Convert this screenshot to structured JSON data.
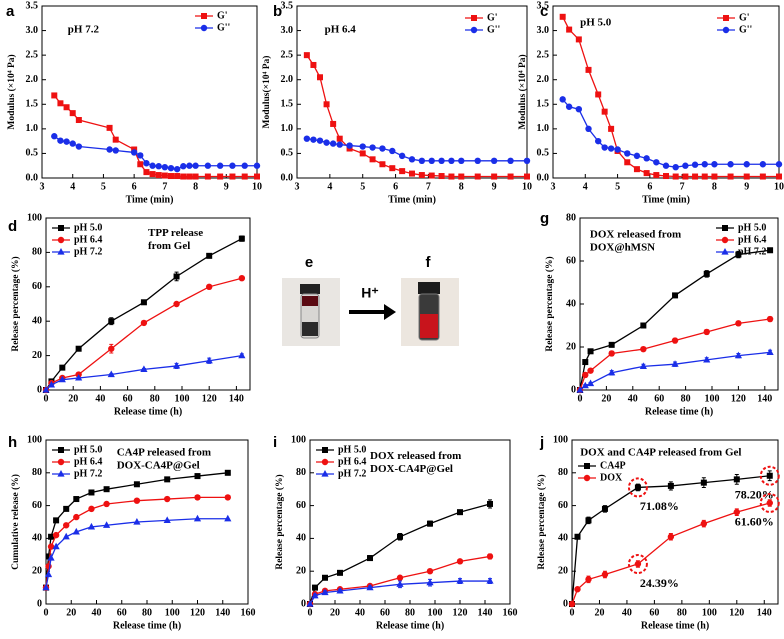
{
  "chart_data": [
    {
      "type": "line",
      "panel_label": "a",
      "annotation": [
        "pH 7.2"
      ],
      "x_label": "Time (min)",
      "y_label": "Modulus (×10⁴ Pa)",
      "xlim": [
        3,
        10
      ],
      "xticks": [
        3,
        4,
        5,
        6,
        7,
        8,
        9,
        10
      ],
      "ylim": [
        0,
        3.5
      ],
      "yticks": [
        {
          "value": 0,
          "label": "0.0"
        },
        0.5,
        {
          "value": 1,
          "label": "1.0"
        },
        1.5,
        {
          "value": 2,
          "label": "2.0"
        },
        2.5,
        {
          "value": 3,
          "label": "3.0"
        },
        3.5
      ],
      "legend": "upper right",
      "x": [
        3.4,
        3.6,
        3.8,
        4.0,
        4.2,
        5.2,
        5.4,
        6.0,
        6.2,
        6.4,
        6.6,
        6.8,
        7.0,
        7.2,
        7.4,
        7.6,
        7.8,
        8.0,
        8.4,
        8.8,
        9.2,
        9.6,
        10.0
      ],
      "series": [
        {
          "name": "G'",
          "color": "#ee1111",
          "marker": "square",
          "values": [
            1.68,
            1.52,
            1.44,
            1.32,
            1.18,
            1.02,
            0.78,
            0.58,
            0.28,
            0.12,
            0.08,
            0.06,
            0.05,
            0.04,
            0.04,
            0.03,
            0.03,
            0.03,
            0.03,
            0.03,
            0.03,
            0.03,
            0.03
          ]
        },
        {
          "name": "G''",
          "color": "#1a2ee8",
          "marker": "circle",
          "values": [
            0.85,
            0.76,
            0.74,
            0.7,
            0.64,
            0.58,
            0.56,
            0.52,
            0.46,
            0.3,
            0.25,
            0.24,
            0.22,
            0.2,
            0.18,
            0.24,
            0.25,
            0.25,
            0.25,
            0.25,
            0.25,
            0.25,
            0.25
          ]
        }
      ]
    },
    {
      "type": "line",
      "panel_label": "b",
      "annotation": [
        "pH 6.4"
      ],
      "x_label": "Time (min)",
      "y_label": "Modulus(×10⁴ Pa)",
      "xlim": [
        3,
        10
      ],
      "xticks": [
        3,
        4,
        5,
        6,
        7,
        8,
        9,
        10
      ],
      "ylim": [
        0,
        3.5
      ],
      "yticks": [
        {
          "value": 0,
          "label": "0.0"
        },
        0.5,
        {
          "value": 1,
          "label": "1.0"
        },
        1.5,
        {
          "value": 2,
          "label": "2.0"
        },
        2.5,
        {
          "value": 3,
          "label": "3.0"
        },
        3.5
      ],
      "legend": "upper right",
      "x": [
        3.3,
        3.5,
        3.7,
        3.9,
        4.1,
        4.3,
        4.6,
        5.0,
        5.3,
        5.6,
        5.9,
        6.2,
        6.5,
        6.8,
        7.1,
        7.4,
        7.7,
        8.0,
        8.5,
        9.0,
        9.5,
        10.0
      ],
      "series": [
        {
          "name": "G'",
          "color": "#ee1111",
          "marker": "square",
          "values": [
            2.5,
            2.3,
            2.05,
            1.5,
            1.1,
            0.8,
            0.6,
            0.5,
            0.38,
            0.28,
            0.2,
            0.14,
            0.09,
            0.06,
            0.05,
            0.04,
            0.03,
            0.03,
            0.03,
            0.03,
            0.03,
            0.03
          ]
        },
        {
          "name": "G''",
          "color": "#1a2ee8",
          "marker": "circle",
          "values": [
            0.8,
            0.78,
            0.76,
            0.72,
            0.7,
            0.68,
            0.66,
            0.64,
            0.62,
            0.6,
            0.55,
            0.45,
            0.38,
            0.35,
            0.35,
            0.35,
            0.35,
            0.35,
            0.35,
            0.35,
            0.35,
            0.35
          ]
        }
      ]
    },
    {
      "type": "line",
      "panel_label": "c",
      "annotation": [
        "pH 5.0"
      ],
      "x_label": "Time (min)",
      "y_label": "Modulus (×10⁴ Pa)",
      "xlim": [
        3,
        10
      ],
      "xticks": [
        3,
        4,
        5,
        6,
        7,
        8,
        9,
        10
      ],
      "ylim": [
        0,
        3.5
      ],
      "yticks": [
        {
          "value": 0,
          "label": "0.0"
        },
        0.5,
        {
          "value": 1,
          "label": "1.0"
        },
        1.5,
        {
          "value": 2,
          "label": "2.0"
        },
        2.5,
        {
          "value": 3,
          "label": "3.0"
        },
        3.5
      ],
      "legend": "upper right",
      "x": [
        3.3,
        3.5,
        3.8,
        4.1,
        4.4,
        4.6,
        4.8,
        5.0,
        5.3,
        5.6,
        5.9,
        6.2,
        6.5,
        6.8,
        7.1,
        7.4,
        7.7,
        8.0,
        8.5,
        9.0,
        9.5,
        10.0
      ],
      "series": [
        {
          "name": "G'",
          "color": "#ee1111",
          "marker": "square",
          "values": [
            3.28,
            3.02,
            2.82,
            2.2,
            1.7,
            1.35,
            1.0,
            0.55,
            0.32,
            0.18,
            0.1,
            0.06,
            0.04,
            0.03,
            0.03,
            0.03,
            0.03,
            0.03,
            0.03,
            0.03,
            0.03,
            0.03
          ]
        },
        {
          "name": "G''",
          "color": "#1a2ee8",
          "marker": "circle",
          "values": [
            1.6,
            1.45,
            1.4,
            1.0,
            0.75,
            0.62,
            0.6,
            0.58,
            0.5,
            0.45,
            0.4,
            0.32,
            0.25,
            0.22,
            0.25,
            0.27,
            0.28,
            0.28,
            0.28,
            0.28,
            0.28,
            0.28
          ]
        }
      ]
    },
    {
      "type": "line",
      "panel_label": "d",
      "annotation": [
        "TPP release",
        "from Gel"
      ],
      "x_label": "Release time (h)",
      "y_label": "Release percentage (%)",
      "xlim": [
        0,
        150
      ],
      "xticks": [
        0,
        20,
        40,
        60,
        80,
        100,
        120,
        140
      ],
      "ylim": [
        0,
        100
      ],
      "yticks": [
        0,
        20,
        40,
        60,
        80,
        100
      ],
      "legend": "upper left",
      "x": [
        0,
        4,
        12,
        24,
        48,
        72,
        96,
        120,
        144
      ],
      "series": [
        {
          "name": "pH  5.0",
          "color": "#000000",
          "marker": "square",
          "values": [
            0,
            5,
            13,
            24,
            40,
            51,
            66,
            78,
            88
          ],
          "errors": [
            0,
            0.5,
            1,
            1,
            2,
            1,
            2.5,
            1,
            1.5
          ]
        },
        {
          "name": "pH  6.4",
          "color": "#ee1111",
          "marker": "circle",
          "values": [
            0,
            4,
            7,
            9,
            24,
            39,
            50,
            60,
            65
          ],
          "errors": [
            0,
            0.5,
            0.5,
            0.5,
            2.5,
            1,
            1,
            1,
            1
          ]
        },
        {
          "name": "pH  7.2",
          "color": "#1a2ee8",
          "marker": "triangle",
          "values": [
            0,
            3,
            6,
            7,
            9,
            12,
            14,
            17,
            20
          ],
          "errors": [
            0,
            0.3,
            0.3,
            0.3,
            0.5,
            0.5,
            1.5,
            1.5,
            1
          ]
        }
      ]
    },
    {
      "type": "line",
      "panel_label": "g",
      "annotation": [
        "DOX released from",
        "DOX@hMSN"
      ],
      "x_label": "Release time (h)",
      "y_label": "Release percentage (%)",
      "xlim": [
        0,
        150
      ],
      "xticks": [
        0,
        20,
        40,
        60,
        80,
        100,
        120,
        140
      ],
      "ylim": [
        0,
        80
      ],
      "yticks": [
        0,
        20,
        40,
        60,
        80
      ],
      "legend": "upper right",
      "x": [
        0,
        4,
        8,
        24,
        48,
        72,
        96,
        120,
        144
      ],
      "series": [
        {
          "name": "pH  5.0",
          "color": "#000000",
          "marker": "square",
          "values": [
            0,
            13,
            18,
            21,
            30,
            44,
            54,
            63,
            65
          ],
          "errors": [
            0,
            1,
            1,
            1,
            1,
            1,
            1.5,
            1.5,
            1
          ]
        },
        {
          "name": "pH  6.4",
          "color": "#ee1111",
          "marker": "circle",
          "values": [
            0,
            7,
            9,
            17,
            19,
            23,
            27,
            31,
            33
          ],
          "errors": [
            0,
            1,
            1,
            1,
            1,
            1,
            1,
            1,
            1
          ]
        },
        {
          "name": "pH  7.2",
          "color": "#1a2ee8",
          "marker": "triangle",
          "values": [
            0,
            2,
            3,
            8,
            11,
            12,
            14,
            16,
            17.5
          ],
          "errors": [
            0,
            0.5,
            0.5,
            1,
            1,
            1,
            1,
            1,
            1
          ]
        }
      ]
    },
    {
      "type": "line",
      "panel_label": "h",
      "annotation": [
        "CA4P released from",
        "DOX-CA4P@Gel"
      ],
      "x_label": "Release time (h)",
      "y_label": "Cumulative release (%)",
      "xlim": [
        0,
        160
      ],
      "xticks": [
        0,
        20,
        40,
        60,
        80,
        100,
        120,
        140,
        160
      ],
      "ylim": [
        0,
        100
      ],
      "yticks": [
        0,
        20,
        40,
        60,
        80,
        100
      ],
      "legend": "upper left",
      "x": [
        0,
        2,
        4,
        8,
        16,
        24,
        36,
        48,
        72,
        96,
        120,
        144
      ],
      "series": [
        {
          "name": "pH  5.0",
          "color": "#000000",
          "marker": "square",
          "values": [
            10,
            29,
            41,
            51,
            58,
            64,
            68,
            70,
            73,
            76,
            78,
            80
          ]
        },
        {
          "name": "pH  6.4",
          "color": "#ee1111",
          "marker": "circle",
          "values": [
            10,
            23,
            35,
            42,
            48,
            53,
            58,
            61,
            63,
            64,
            65,
            65
          ]
        },
        {
          "name": "pH  7.2",
          "color": "#1a2ee8",
          "marker": "triangle",
          "values": [
            10,
            18,
            28,
            35,
            41,
            44,
            47,
            48,
            50,
            51,
            52,
            52
          ]
        }
      ]
    },
    {
      "type": "line",
      "panel_label": "i",
      "annotation": [
        "DOX released from",
        "DOX-CA4P@Gel"
      ],
      "x_label": "Release time (h)",
      "y_label": "Release percentage (%)",
      "xlim": [
        0,
        160
      ],
      "xticks": [
        0,
        20,
        40,
        60,
        80,
        100,
        120,
        140,
        160
      ],
      "ylim": [
        0,
        100
      ],
      "yticks": [
        0,
        20,
        40,
        60,
        80,
        100
      ],
      "legend": "upper left",
      "x": [
        0,
        4,
        12,
        24,
        48,
        72,
        96,
        120,
        144
      ],
      "series": [
        {
          "name": "pH 5.0",
          "color": "#000000",
          "marker": "square",
          "values": [
            0,
            10,
            16,
            19,
            28,
            41,
            49,
            56,
            61
          ],
          "errors": [
            0,
            1,
            1,
            1,
            1.5,
            2,
            1.5,
            1,
            2.5
          ]
        },
        {
          "name": "pH 6.4",
          "color": "#ee1111",
          "marker": "circle",
          "values": [
            0,
            6,
            8,
            9,
            11,
            16,
            20,
            26,
            29
          ],
          "errors": [
            0,
            1,
            1,
            1,
            1,
            1,
            1,
            1,
            1.5
          ]
        },
        {
          "name": "pH 7.2",
          "color": "#1a2ee8",
          "marker": "triangle",
          "values": [
            0,
            5,
            7,
            8,
            10,
            12,
            13,
            14,
            14
          ],
          "errors": [
            0,
            1,
            1,
            1,
            1,
            2,
            2,
            1.5,
            1.5
          ]
        }
      ]
    },
    {
      "type": "line",
      "panel_label": "j",
      "annotation": [
        "DOX and CA4P released from Gel"
      ],
      "x_label": "Release time (h)",
      "y_label": "Release percentage (%)",
      "xlim": [
        0,
        150
      ],
      "xticks": [
        0,
        20,
        40,
        60,
        80,
        100,
        120,
        140
      ],
      "ylim": [
        0,
        100
      ],
      "yticks": [
        0,
        20,
        40,
        60,
        80,
        100
      ],
      "legend": "upper left",
      "x": [
        0,
        4,
        12,
        24,
        48,
        72,
        96,
        120,
        144
      ],
      "series": [
        {
          "name": "CA4P",
          "color": "#000000",
          "marker": "square",
          "values": [
            0,
            41,
            51,
            58,
            71.08,
            72,
            74,
            76,
            78.2
          ],
          "errors": [
            0,
            1,
            2,
            2,
            2,
            2.5,
            3,
            3,
            3
          ],
          "value_labels": [
            null,
            null,
            null,
            null,
            "71.08%",
            null,
            null,
            null,
            "78.20%"
          ]
        },
        {
          "name": "DOX",
          "color": "#ee1111",
          "marker": "circle",
          "values": [
            0,
            9,
            15,
            18,
            24.39,
            41,
            49,
            56,
            61.6
          ],
          "errors": [
            0,
            1,
            2,
            2,
            2,
            2,
            2,
            2,
            2
          ],
          "value_labels": [
            null,
            null,
            null,
            null,
            "24.39%",
            null,
            null,
            null,
            "61.60%"
          ]
        }
      ]
    }
  ],
  "photo_panel": {
    "left_label": "e",
    "right_label": "f",
    "arrow_label": "H⁺"
  }
}
